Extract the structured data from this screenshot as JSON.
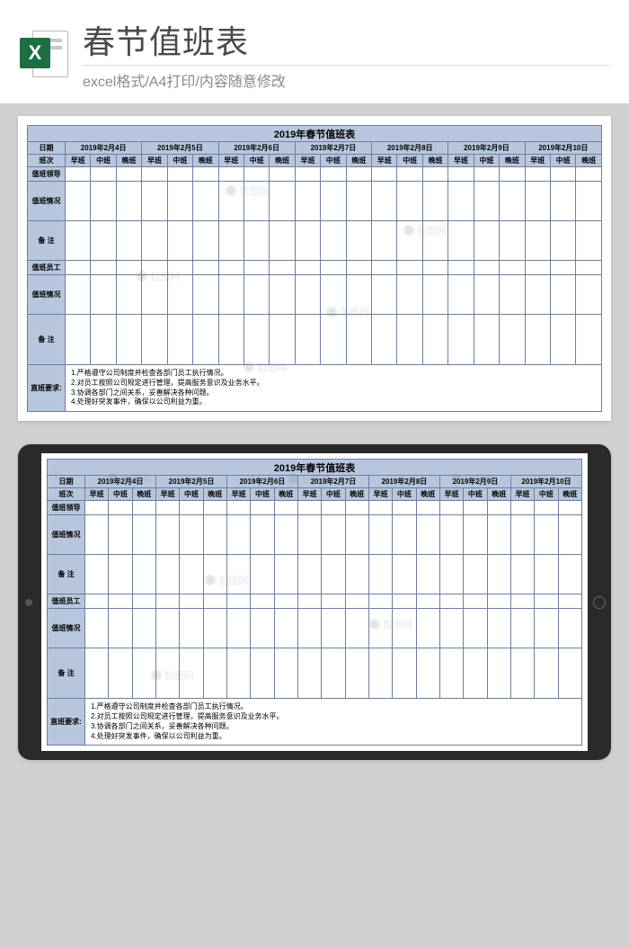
{
  "banner": {
    "title": "春节值班表",
    "subtitle": "excel格式/A4打印/内容随意修改",
    "icon_letter": "X"
  },
  "colors": {
    "header_fill": "#b8c6dd",
    "border": "#6b7fa0",
    "page_bg": "#d0d0d0",
    "card_bg": "#ffffff"
  },
  "schedule": {
    "title": "2019年春节值班表",
    "label_date": "日期",
    "label_shift": "班次",
    "dates": [
      "2019年2月4日",
      "2019年2月5日",
      "2019年2月6日",
      "2019年2月7日",
      "2019年2月8日",
      "2019年2月9日",
      "2019年2月10日"
    ],
    "shifts": [
      "早班",
      "中班",
      "晚班"
    ],
    "row_labels": [
      "值班领导",
      "值班情况",
      "备  注",
      "值班员工",
      "值班情况",
      "备  注"
    ],
    "row_heights": [
      "h-small",
      "h-mid",
      "h-mid",
      "h-small",
      "h-mid",
      "h-big"
    ],
    "requirements_label": "直班要求:",
    "requirements": [
      "1.严格遵守公司制度并检查各部门员工执行情况。",
      "2.对员工按照公司规定进行管理，提高服务意识及业务水平。",
      "3.协调各部门之间关系，妥善解决各种问题。",
      "4.处理好突发事件，确保以公司利益为重。"
    ]
  },
  "watermark_text": "包图网"
}
